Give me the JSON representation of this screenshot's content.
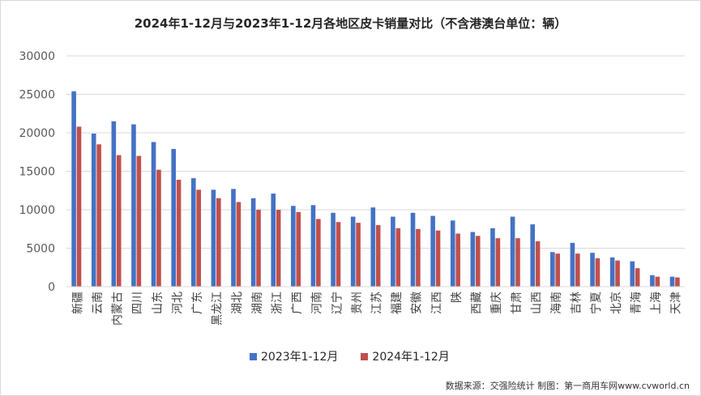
{
  "chart_data": {
    "type": "bar",
    "title": "2024年1-12月与2023年1-12月各地区皮卡销量对比（不含港澳台单位：辆）",
    "xlabel": "",
    "ylabel": "",
    "ylim": [
      0,
      30000
    ],
    "yticks": [
      "0",
      "5000",
      "10000",
      "15000",
      "20000",
      "25000",
      "30000"
    ],
    "grid": true,
    "legend_position": "bottom",
    "categories": [
      "新疆",
      "云南",
      "内蒙古",
      "四川",
      "山东",
      "河北",
      "广东",
      "黑龙江",
      "湖北",
      "湖南",
      "浙江",
      "广西",
      "河南",
      "辽宁",
      "贵州",
      "江苏",
      "福建",
      "安徽",
      "江西",
      "陕",
      "西藏",
      "重庆",
      "甘肃",
      "山西",
      "海南",
      "吉林",
      "宁夏",
      "北京",
      "青海",
      "上海",
      "天津"
    ],
    "series": [
      {
        "name": "2023年1-12月",
        "color": "#4472c4",
        "values": [
          25400,
          19900,
          21500,
          21100,
          18800,
          17900,
          14100,
          12600,
          12700,
          11500,
          12100,
          10500,
          10600,
          9600,
          9100,
          10300,
          9100,
          9600,
          9200,
          8600,
          7100,
          7600,
          9100,
          8100,
          4500,
          5700,
          4400,
          3800,
          3300,
          1500,
          1300
        ]
      },
      {
        "name": "2024年1-12月",
        "color": "#c0504d",
        "values": [
          20800,
          18500,
          17100,
          17000,
          15200,
          13900,
          12600,
          11500,
          11000,
          10000,
          10000,
          9700,
          8800,
          8400,
          8300,
          8000,
          7600,
          7500,
          7300,
          6900,
          6600,
          6300,
          6300,
          5900,
          4300,
          4300,
          3700,
          3400,
          2400,
          1300,
          1200
        ]
      }
    ]
  },
  "source_note": "数据来源：交强险统计 制图：第一商用车网www.cvworld.cn"
}
